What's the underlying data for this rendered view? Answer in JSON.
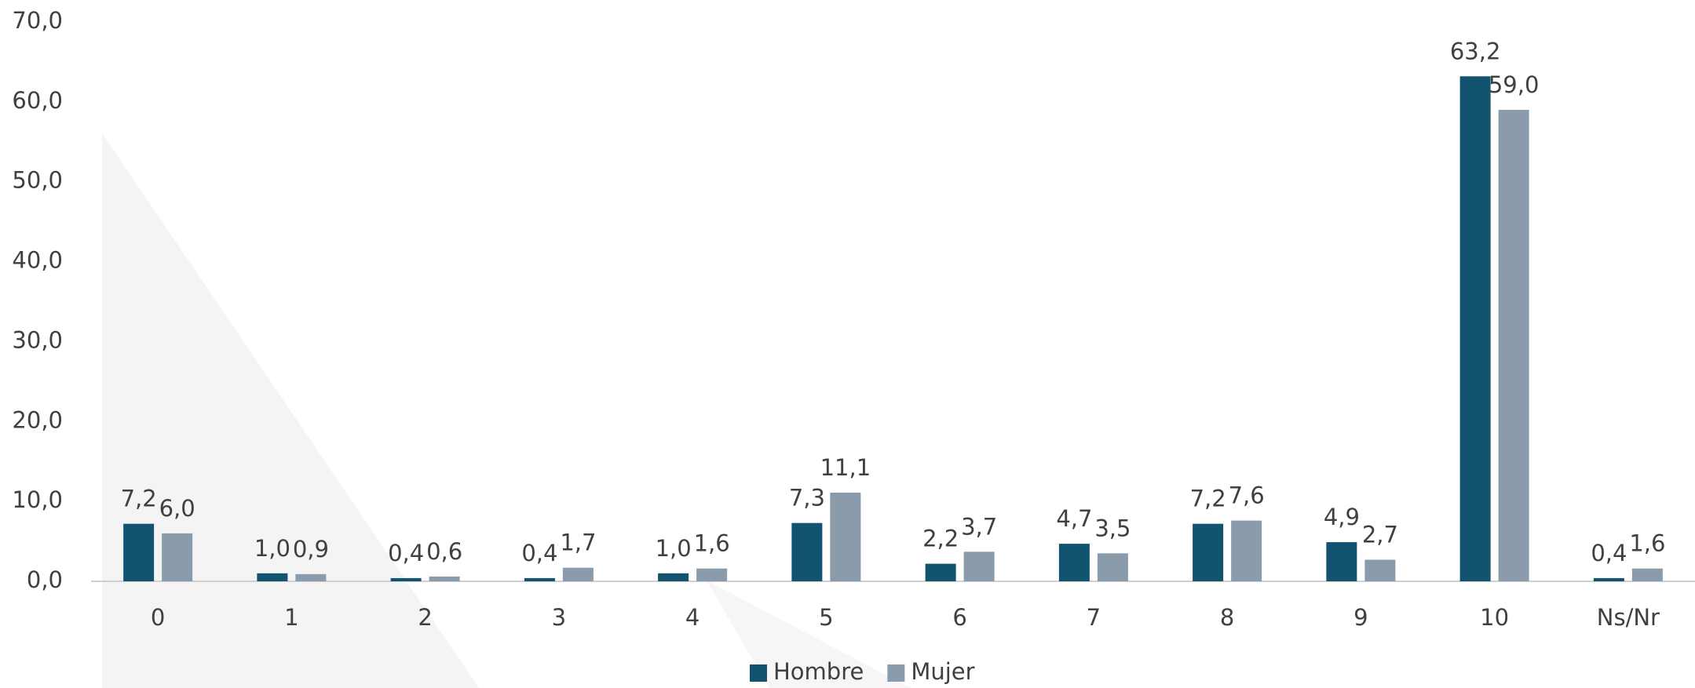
{
  "chart_data": {
    "type": "bar",
    "categories": [
      "0",
      "1",
      "2",
      "3",
      "4",
      "5",
      "6",
      "7",
      "8",
      "9",
      "10",
      "Ns/Nr"
    ],
    "series": [
      {
        "name": "Hombre",
        "color": "#12536f",
        "values": [
          7.2,
          1.0,
          0.4,
          0.4,
          1.0,
          7.3,
          2.2,
          4.7,
          7.2,
          4.9,
          63.2,
          0.4
        ],
        "value_labels": [
          "7,2",
          "1,0",
          "0,4",
          "0,4",
          "1,0",
          "7,3",
          "2,2",
          "4,7",
          "7,2",
          "4,9",
          "63,2",
          "0,4"
        ]
      },
      {
        "name": "Mujer",
        "color": "#8a9bab",
        "values": [
          6.0,
          0.9,
          0.6,
          1.7,
          1.6,
          11.1,
          3.7,
          3.5,
          7.6,
          2.7,
          59.0,
          1.6
        ],
        "value_labels": [
          "6,0",
          "0,9",
          "0,6",
          "1,7",
          "1,6",
          "11,1",
          "3,7",
          "3,5",
          "7,6",
          "2,7",
          "59,0",
          "1,6"
        ]
      }
    ],
    "ylim": [
      0,
      70
    ],
    "yticks": [
      {
        "value": 0,
        "label": "0,0"
      },
      {
        "value": 10,
        "label": "10,0"
      },
      {
        "value": 20,
        "label": "20,0"
      },
      {
        "value": 30,
        "label": "30,0"
      },
      {
        "value": 40,
        "label": "40,0"
      },
      {
        "value": 50,
        "label": "50,0"
      },
      {
        "value": 60,
        "label": "60,0"
      },
      {
        "value": 70,
        "label": "70,0"
      }
    ],
    "grid": false,
    "legend": "bottom"
  }
}
